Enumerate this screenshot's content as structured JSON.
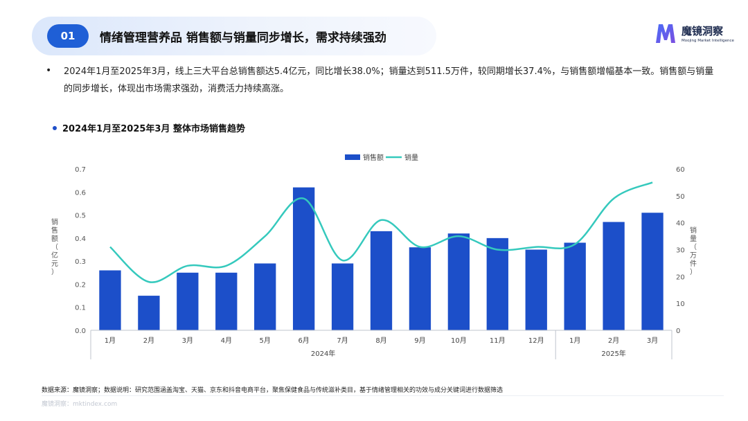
{
  "header": {
    "section_number": "01",
    "title": "情绪管理营养品 销售额与销量同步增长，需求持续强劲"
  },
  "brand": {
    "name": "魔镜洞察",
    "tagline": "Moojing Market Intelligence"
  },
  "summary": {
    "bullet": "•",
    "text": "2024年1月至2025年3月，线上三大平台总销售额达5.4亿元，同比增长38.0%；销量达到511.5万件，较同期增长37.4%，与销售额增幅基本一致。销售额与销量的同步增长，体现出市场需求强劲，消费活力持续高涨。"
  },
  "chart_heading": "2024年1月至2025年3月 整体市场销售趋势",
  "chart_data": {
    "type": "bar+line",
    "categories": [
      "1月",
      "2月",
      "3月",
      "4月",
      "5月",
      "6月",
      "7月",
      "8月",
      "9月",
      "10月",
      "11月",
      "12月",
      "1月",
      "2月",
      "3月"
    ],
    "year_groups": [
      {
        "label": "2024年",
        "count": 12
      },
      {
        "label": "2025年",
        "count": 3
      }
    ],
    "series": [
      {
        "name": "销售额",
        "type": "bar",
        "axis": "left",
        "values": [
          0.26,
          0.15,
          0.25,
          0.25,
          0.29,
          0.62,
          0.29,
          0.43,
          0.36,
          0.42,
          0.4,
          0.35,
          0.38,
          0.47,
          0.51
        ],
        "color": "#1c4fc9"
      },
      {
        "name": "销量",
        "type": "line",
        "axis": "right",
        "values": [
          31,
          18,
          24,
          24,
          35,
          49,
          26,
          41,
          31,
          35,
          30,
          31,
          32,
          49,
          55
        ],
        "color": "#35c9bd"
      }
    ],
    "y_left": {
      "label": "销售额（亿元）",
      "min": 0,
      "max": 0.7,
      "ticks": [
        "0.0",
        "0.1",
        "0.2",
        "0.3",
        "0.4",
        "0.5",
        "0.6",
        "0.7"
      ]
    },
    "y_right": {
      "label": "销量（万件）",
      "min": 0,
      "max": 60,
      "ticks": [
        "0",
        "10",
        "20",
        "30",
        "40",
        "50",
        "60"
      ]
    },
    "legend_position": "top-center",
    "grid": false
  },
  "footer": {
    "source_note": "数据来源：魔镜洞察；数据说明：研究范围涵盖淘宝、天猫、京东和抖音电商平台，聚焦保健食品与传统滋补类目，基于情绪管理相关的功效与成分关键词进行数据筛选",
    "site": "魔镜洞察：mktindex.com"
  },
  "colors": {
    "accent": "#1f5fd6",
    "bar": "#1c4fc9",
    "line": "#35c9bd"
  }
}
